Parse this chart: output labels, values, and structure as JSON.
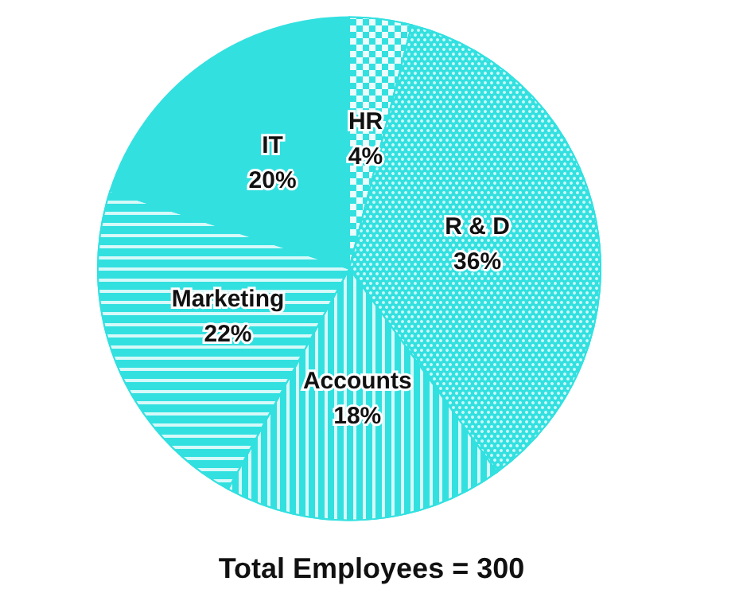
{
  "chart_data": {
    "type": "pie",
    "title": "Total Employees = 300",
    "categories": [
      "HR",
      "R & D",
      "Accounts",
      "Marketing",
      "IT"
    ],
    "values": [
      4,
      36,
      18,
      22,
      20
    ],
    "value_labels": [
      "4%",
      "36%",
      "18%",
      "22%",
      "20%"
    ],
    "colors": [
      "#33e0e0",
      "#33e0e0",
      "#33e0e0",
      "#33e0e0",
      "#33e0e0"
    ],
    "legend": false
  }
}
